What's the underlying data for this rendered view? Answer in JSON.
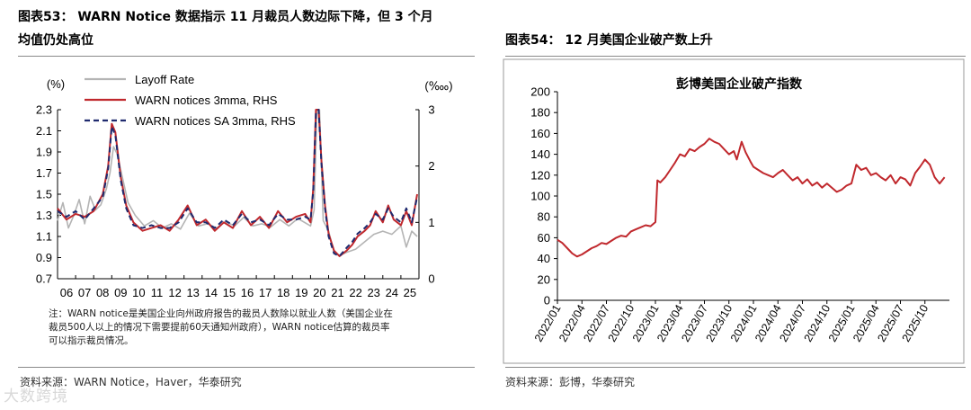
{
  "left": {
    "title_line1": "图表53： WARN Notice 数据指示 11 月裁员人数边际下降，但 3 个月",
    "title_line2": "均值仍处高位",
    "note_line1": "注：WARN notice是美国企业向州政府报告的裁员人数除以就业人数（美国企业在",
    "note_line2": "裁员500人以上的情况下需要提前60天通知州政府），WARN notice估算的裁员率",
    "note_line3": "可以指示裁员情况。",
    "source": "资料来源：WARN Notice，Haver，华泰研究"
  },
  "right": {
    "title": "图表54： 12 月美国企业破产数上升",
    "source": "资料来源：彭博，华泰研究"
  },
  "watermark": "大数跨境",
  "colors": {
    "grey": "#b4b4b4",
    "red": "#c0282d",
    "navy": "#1f2a6e"
  },
  "chart_data": [
    {
      "type": "line",
      "y_unit_left": "(%)",
      "y_unit_right": "(‱)",
      "ylim_left": [
        0.7,
        2.3
      ],
      "ylim_right": [
        0,
        3
      ],
      "yticks_left": [
        "0.7",
        "0.9",
        "1.1",
        "1.3",
        "1.5",
        "1.7",
        "1.9",
        "2.1",
        "2.3"
      ],
      "yticks_right": [
        "0",
        "1",
        "2",
        "3"
      ],
      "xlim": [
        2006,
        2026
      ],
      "xticks": [
        "06",
        "07",
        "08",
        "09",
        "10",
        "11",
        "12",
        "13",
        "14",
        "15",
        "16",
        "17",
        "18",
        "19",
        "20",
        "21",
        "22",
        "23",
        "24",
        "25"
      ],
      "legend_position": "top-left",
      "series": [
        {
          "name": "Layoff Rate",
          "axis": "left",
          "color": "#b4b4b4",
          "x": [
            2006.0,
            2006.3,
            2006.6,
            2006.9,
            2007.2,
            2007.5,
            2007.8,
            2008.1,
            2008.4,
            2008.7,
            2008.9,
            2009.1,
            2009.3,
            2009.6,
            2009.9,
            2010.3,
            2010.8,
            2011.3,
            2011.8,
            2012.3,
            2012.8,
            2013.3,
            2013.8,
            2014.3,
            2014.8,
            2015.3,
            2015.8,
            2016.3,
            2016.8,
            2017.3,
            2017.8,
            2018.3,
            2018.8,
            2019.3,
            2019.8,
            2020.0,
            2020.2,
            2020.35,
            2020.5,
            2020.7,
            2021.0,
            2021.3,
            2021.6,
            2022.0,
            2022.5,
            2023.0,
            2023.5,
            2024.0,
            2024.5,
            2025.0,
            2025.3,
            2025.6,
            2025.9
          ],
          "y": [
            1.25,
            1.42,
            1.18,
            1.3,
            1.45,
            1.22,
            1.48,
            1.35,
            1.4,
            1.55,
            1.7,
            1.95,
            1.88,
            1.65,
            1.42,
            1.3,
            1.2,
            1.25,
            1.18,
            1.22,
            1.17,
            1.32,
            1.2,
            1.22,
            1.18,
            1.24,
            1.2,
            1.28,
            1.2,
            1.22,
            1.19,
            1.26,
            1.2,
            1.27,
            1.22,
            1.2,
            1.35,
            2.3,
            2.3,
            1.25,
            1.15,
            0.95,
            0.92,
            0.95,
            0.98,
            1.05,
            1.12,
            1.15,
            1.12,
            1.2,
            1.0,
            1.15,
            1.1
          ]
        },
        {
          "name": "WARN notices 3mma, RHS",
          "axis": "right",
          "color": "#c0282d",
          "x": [
            2006.0,
            2006.5,
            2007.0,
            2007.5,
            2008.0,
            2008.5,
            2008.8,
            2009.0,
            2009.2,
            2009.5,
            2009.8,
            2010.2,
            2010.7,
            2011.2,
            2011.7,
            2012.2,
            2012.7,
            2013.2,
            2013.7,
            2014.2,
            2014.7,
            2015.2,
            2015.7,
            2016.2,
            2016.7,
            2017.2,
            2017.7,
            2018.2,
            2018.7,
            2019.2,
            2019.7,
            2020.0,
            2020.15,
            2020.3,
            2020.45,
            2020.6,
            2020.8,
            2021.0,
            2021.3,
            2021.6,
            2022.0,
            2022.3,
            2022.6,
            2023.0,
            2023.3,
            2023.6,
            2024.0,
            2024.3,
            2024.6,
            2025.0,
            2025.3,
            2025.6,
            2025.9
          ],
          "y": [
            1.25,
            1.05,
            1.15,
            1.1,
            1.2,
            1.5,
            2.0,
            2.75,
            2.6,
            1.8,
            1.3,
            1.0,
            0.85,
            0.9,
            0.95,
            0.85,
            1.05,
            1.3,
            0.95,
            1.05,
            0.85,
            1.0,
            0.9,
            1.2,
            0.95,
            1.1,
            0.9,
            1.2,
            1.0,
            1.1,
            1.15,
            1.0,
            1.6,
            3.0,
            3.0,
            2.1,
            1.3,
            0.8,
            0.5,
            0.4,
            0.5,
            0.6,
            0.75,
            0.85,
            0.95,
            1.2,
            1.0,
            1.3,
            1.05,
            0.95,
            1.2,
            0.95,
            1.5
          ]
        },
        {
          "name": "WARN notices SA 3mma, RHS",
          "axis": "right",
          "color": "#1f2a6e",
          "dashed": true,
          "x": [
            2006.0,
            2006.5,
            2007.0,
            2007.5,
            2008.0,
            2008.5,
            2008.8,
            2009.0,
            2009.2,
            2009.5,
            2009.8,
            2010.2,
            2010.7,
            2011.2,
            2011.7,
            2012.2,
            2012.7,
            2013.2,
            2013.7,
            2014.2,
            2014.7,
            2015.2,
            2015.7,
            2016.2,
            2016.7,
            2017.2,
            2017.7,
            2018.2,
            2018.7,
            2019.2,
            2019.7,
            2020.0,
            2020.15,
            2020.3,
            2020.45,
            2020.6,
            2020.8,
            2021.0,
            2021.3,
            2021.6,
            2022.0,
            2022.3,
            2022.6,
            2023.0,
            2023.3,
            2023.6,
            2024.0,
            2024.3,
            2024.6,
            2025.0,
            2025.3,
            2025.6,
            2025.9
          ],
          "y": [
            1.2,
            1.1,
            1.2,
            1.05,
            1.25,
            1.45,
            1.95,
            2.7,
            2.55,
            1.75,
            1.25,
            0.95,
            0.9,
            0.95,
            0.9,
            0.9,
            1.0,
            1.25,
            1.0,
            1.0,
            0.9,
            1.05,
            0.95,
            1.15,
            1.0,
            1.05,
            0.95,
            1.15,
            1.05,
            1.05,
            1.1,
            1.05,
            1.55,
            2.95,
            3.0,
            2.05,
            1.25,
            0.75,
            0.45,
            0.4,
            0.55,
            0.65,
            0.8,
            0.9,
            1.0,
            1.15,
            1.05,
            1.25,
            1.1,
            1.0,
            1.25,
            1.0,
            1.45
          ]
        }
      ]
    },
    {
      "type": "line",
      "title": "彭博美国企业破产指数",
      "ylim": [
        0,
        200
      ],
      "yticks": [
        "0",
        "20",
        "40",
        "60",
        "80",
        "100",
        "120",
        "140",
        "160",
        "180",
        "200"
      ],
      "xlim": [
        2022.0,
        2026.0
      ],
      "xticks": [
        "2022/01",
        "2022/04",
        "2022/07",
        "2022/10",
        "2023/01",
        "2023/04",
        "2023/07",
        "2023/10",
        "2024/01",
        "2024/04",
        "2024/07",
        "2024/10",
        "2025/01",
        "2025/04",
        "2025/07",
        "2025/10"
      ],
      "series": [
        {
          "name": "",
          "color": "#c0282d",
          "x": [
            2022.0,
            2022.05,
            2022.1,
            2022.15,
            2022.2,
            2022.25,
            2022.3,
            2022.35,
            2022.4,
            2022.45,
            2022.5,
            2022.55,
            2022.6,
            2022.65,
            2022.7,
            2022.75,
            2022.8,
            2022.85,
            2022.9,
            2022.95,
            2023.0,
            2023.02,
            2023.05,
            2023.1,
            2023.15,
            2023.2,
            2023.25,
            2023.3,
            2023.35,
            2023.4,
            2023.45,
            2023.5,
            2023.55,
            2023.6,
            2023.65,
            2023.7,
            2023.75,
            2023.8,
            2023.83,
            2023.88,
            2023.92,
            2023.97,
            2024.0,
            2024.05,
            2024.1,
            2024.15,
            2024.2,
            2024.25,
            2024.3,
            2024.35,
            2024.4,
            2024.45,
            2024.5,
            2024.55,
            2024.6,
            2024.65,
            2024.7,
            2024.75,
            2024.8,
            2024.85,
            2024.9,
            2024.95,
            2025.0,
            2025.05,
            2025.1,
            2025.15,
            2025.2,
            2025.25,
            2025.3,
            2025.35,
            2025.4,
            2025.45,
            2025.5,
            2025.55,
            2025.6,
            2025.65,
            2025.7,
            2025.75,
            2025.8,
            2025.85,
            2025.9,
            2025.95
          ],
          "y": [
            58,
            55,
            50,
            45,
            42,
            44,
            47,
            50,
            52,
            55,
            54,
            57,
            60,
            62,
            61,
            66,
            68,
            70,
            72,
            71,
            75,
            115,
            113,
            118,
            125,
            132,
            140,
            138,
            145,
            143,
            147,
            150,
            155,
            152,
            150,
            145,
            140,
            143,
            135,
            152,
            142,
            133,
            128,
            125,
            122,
            120,
            118,
            122,
            125,
            120,
            115,
            118,
            112,
            116,
            110,
            113,
            108,
            112,
            108,
            104,
            106,
            110,
            112,
            130,
            125,
            127,
            120,
            122,
            118,
            115,
            120,
            112,
            118,
            116,
            110,
            122,
            128,
            135,
            130,
            118,
            112,
            118
          ]
        }
      ]
    }
  ]
}
